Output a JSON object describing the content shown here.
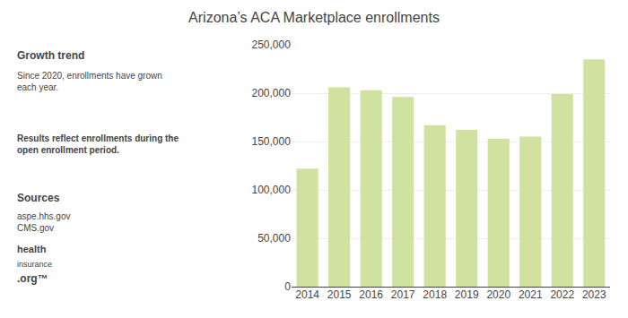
{
  "chart_data": {
    "type": "bar",
    "title": "Arizona’s ACA Marketplace enrollments",
    "categories": [
      "2014",
      "2015",
      "2016",
      "2017",
      "2018",
      "2019",
      "2020",
      "2021",
      "2022",
      "2023"
    ],
    "values": [
      122000,
      206000,
      203000,
      196000,
      167000,
      162000,
      153000,
      155000,
      199000,
      235000
    ],
    "color": "#cfe2a0",
    "ylim": [
      0,
      250000
    ],
    "yticks": [
      0,
      {
        "value": 50000,
        "label": "50,000"
      },
      {
        "value": 100000,
        "label": "100,000"
      },
      {
        "value": 150000,
        "label": "150,000"
      },
      {
        "value": 200000,
        "label": "200,000"
      },
      {
        "value": 250000,
        "label": "250,000"
      }
    ],
    "grid": true,
    "annotations": [
      "Growth trend",
      "Since 2020, enrollments have grown\neach year.",
      "Results reflect enrollments during the\nopen enrollment period.",
      "Sources",
      "aspe.hhs.gov\nCMS.gov",
      "health",
      "insurance",
      ".org™"
    ]
  }
}
